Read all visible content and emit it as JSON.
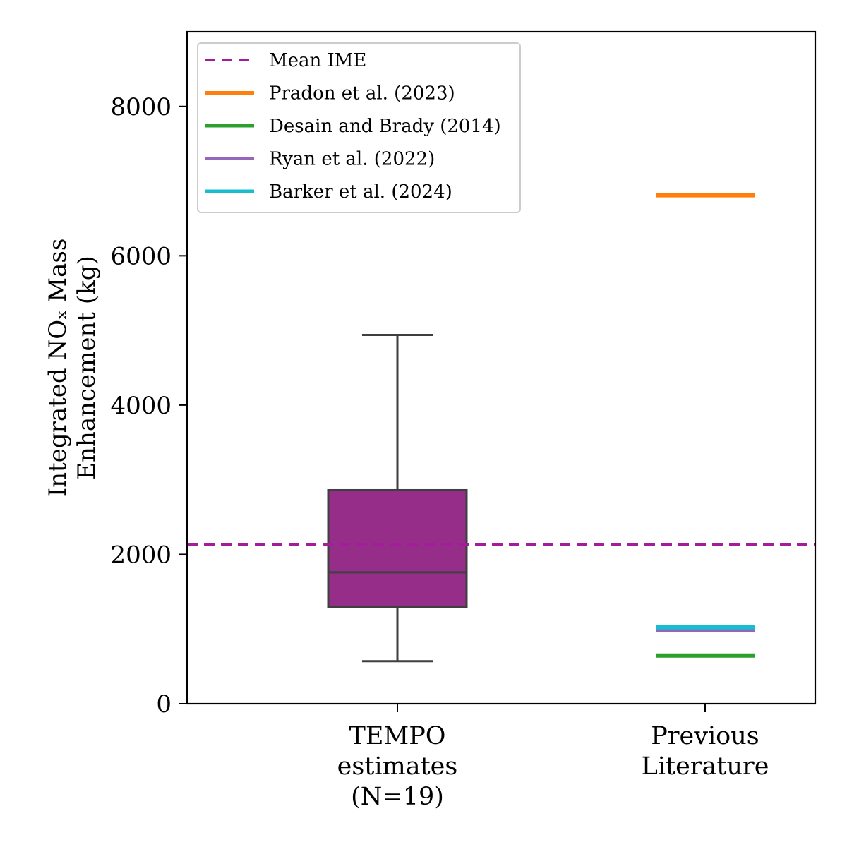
{
  "chart_data": {
    "type": "box",
    "title": "",
    "xlabel": "",
    "ylabel_lines": [
      "Integrated NOₓ Mass",
      "Enhancement (kg)"
    ],
    "ylim": [
      0,
      9000
    ],
    "yticks": [
      0,
      2000,
      4000,
      6000,
      8000
    ],
    "yticklabels": [
      "0",
      "2000",
      "4000",
      "6000",
      "8000"
    ],
    "categories": [
      {
        "lines": [
          "TEMPO",
          "estimates",
          "(N=19)"
        ]
      },
      {
        "lines": [
          "Previous",
          "Literature"
        ]
      }
    ],
    "box": {
      "category_index": 0,
      "whisker_low": 570,
      "q1": 1300,
      "median": 1760,
      "q3": 2860,
      "whisker_high": 4940,
      "color": "#952d89"
    },
    "reference_lines": [
      {
        "name": "Mean IME",
        "value": 2130,
        "color": "#a21c9c",
        "style": "dashed",
        "span": "full"
      },
      {
        "name": "Pradon et al. (2023)",
        "value": 6810,
        "color": "#ff7f0e",
        "style": "solid",
        "category_index": 1
      },
      {
        "name": "Desain and Brady (2014)",
        "value": 645,
        "color": "#2ca02c",
        "style": "solid",
        "category_index": 1
      },
      {
        "name": "Ryan et al. (2022)",
        "value": 990,
        "color": "#9467bd",
        "style": "solid",
        "category_index": 1
      },
      {
        "name": "Barker et al. (2024)",
        "value": 1025,
        "color": "#17becf",
        "style": "solid",
        "category_index": 1
      }
    ],
    "legend": {
      "placement": "top-left",
      "entries": [
        "Mean IME",
        "Pradon et al. (2023)",
        "Desain and Brady (2014)",
        "Ryan et al. (2022)",
        "Barker et al. (2024)"
      ]
    },
    "grid": false
  }
}
